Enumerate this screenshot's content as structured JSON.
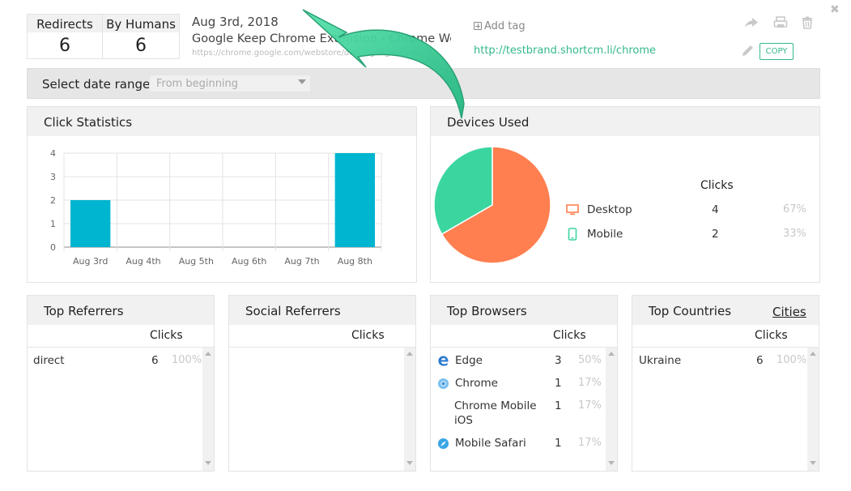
{
  "stats": {
    "redirects_label": "Redirects",
    "redirects_value": "6",
    "humans_label": "By Humans",
    "humans_value": "6"
  },
  "link": {
    "date": "Aug 3rd, 2018",
    "title": "Google Keep Chrome Extension - Chrome We...",
    "url": "https://chrome.google.com/webstore/detail/google-keep",
    "add_tag": "Add tag",
    "short_url": "http://testbrand.shortcm.li/chrome",
    "copy_label": "COPY"
  },
  "date_range": {
    "label": "Select date range:",
    "selected": "From beginning"
  },
  "click_stats": {
    "title": "Click Statistics"
  },
  "chart_data": {
    "type": "bar",
    "categories": [
      "Aug 3rd",
      "Aug 4th",
      "Aug 5th",
      "Aug 6th",
      "Aug 7th",
      "Aug 8th"
    ],
    "values": [
      2,
      0,
      0,
      0,
      0,
      4
    ],
    "ylim": [
      0,
      4
    ],
    "yticks": [
      "0",
      "1",
      "2",
      "3",
      "4"
    ],
    "grid": true,
    "color": "#00b5d0"
  },
  "devices": {
    "title": "Devices Used",
    "clicks_header": "Clicks",
    "items": [
      {
        "name": "Desktop",
        "clicks": "4",
        "pct": "67%",
        "value": 4,
        "color": "#ff7f50",
        "icon": "desktop-icon"
      },
      {
        "name": "Mobile",
        "clicks": "2",
        "pct": "33%",
        "value": 2,
        "color": "#3bd6a0",
        "icon": "mobile-icon"
      }
    ]
  },
  "top_referrers": {
    "title": "Top Referrers",
    "clicks_header": "Clicks",
    "rows": [
      {
        "name": "direct",
        "clicks": "6",
        "pct": "100%"
      }
    ]
  },
  "social_referrers": {
    "title": "Social Referrers",
    "clicks_header": "Clicks"
  },
  "top_browsers": {
    "title": "Top Browsers",
    "clicks_header": "Clicks",
    "rows": [
      {
        "name": "Edge",
        "clicks": "3",
        "pct": "50%",
        "icon": "edge-icon"
      },
      {
        "name": "Chrome",
        "clicks": "1",
        "pct": "17%",
        "icon": "chrome-icon"
      },
      {
        "name": "Chrome Mobile",
        "name2": "iOS",
        "clicks": "1",
        "pct": "17%"
      },
      {
        "name": "Mobile Safari",
        "clicks": "1",
        "pct": "17%",
        "icon": "safari-icon"
      }
    ]
  },
  "top_countries": {
    "title": "Top Countries",
    "cities_link": "Cities",
    "clicks_header": "Clicks",
    "rows": [
      {
        "name": "Ukraine",
        "clicks": "6",
        "pct": "100%"
      }
    ]
  },
  "colors": {
    "accent": "#34b98a",
    "arrow": "#3ed39a"
  }
}
